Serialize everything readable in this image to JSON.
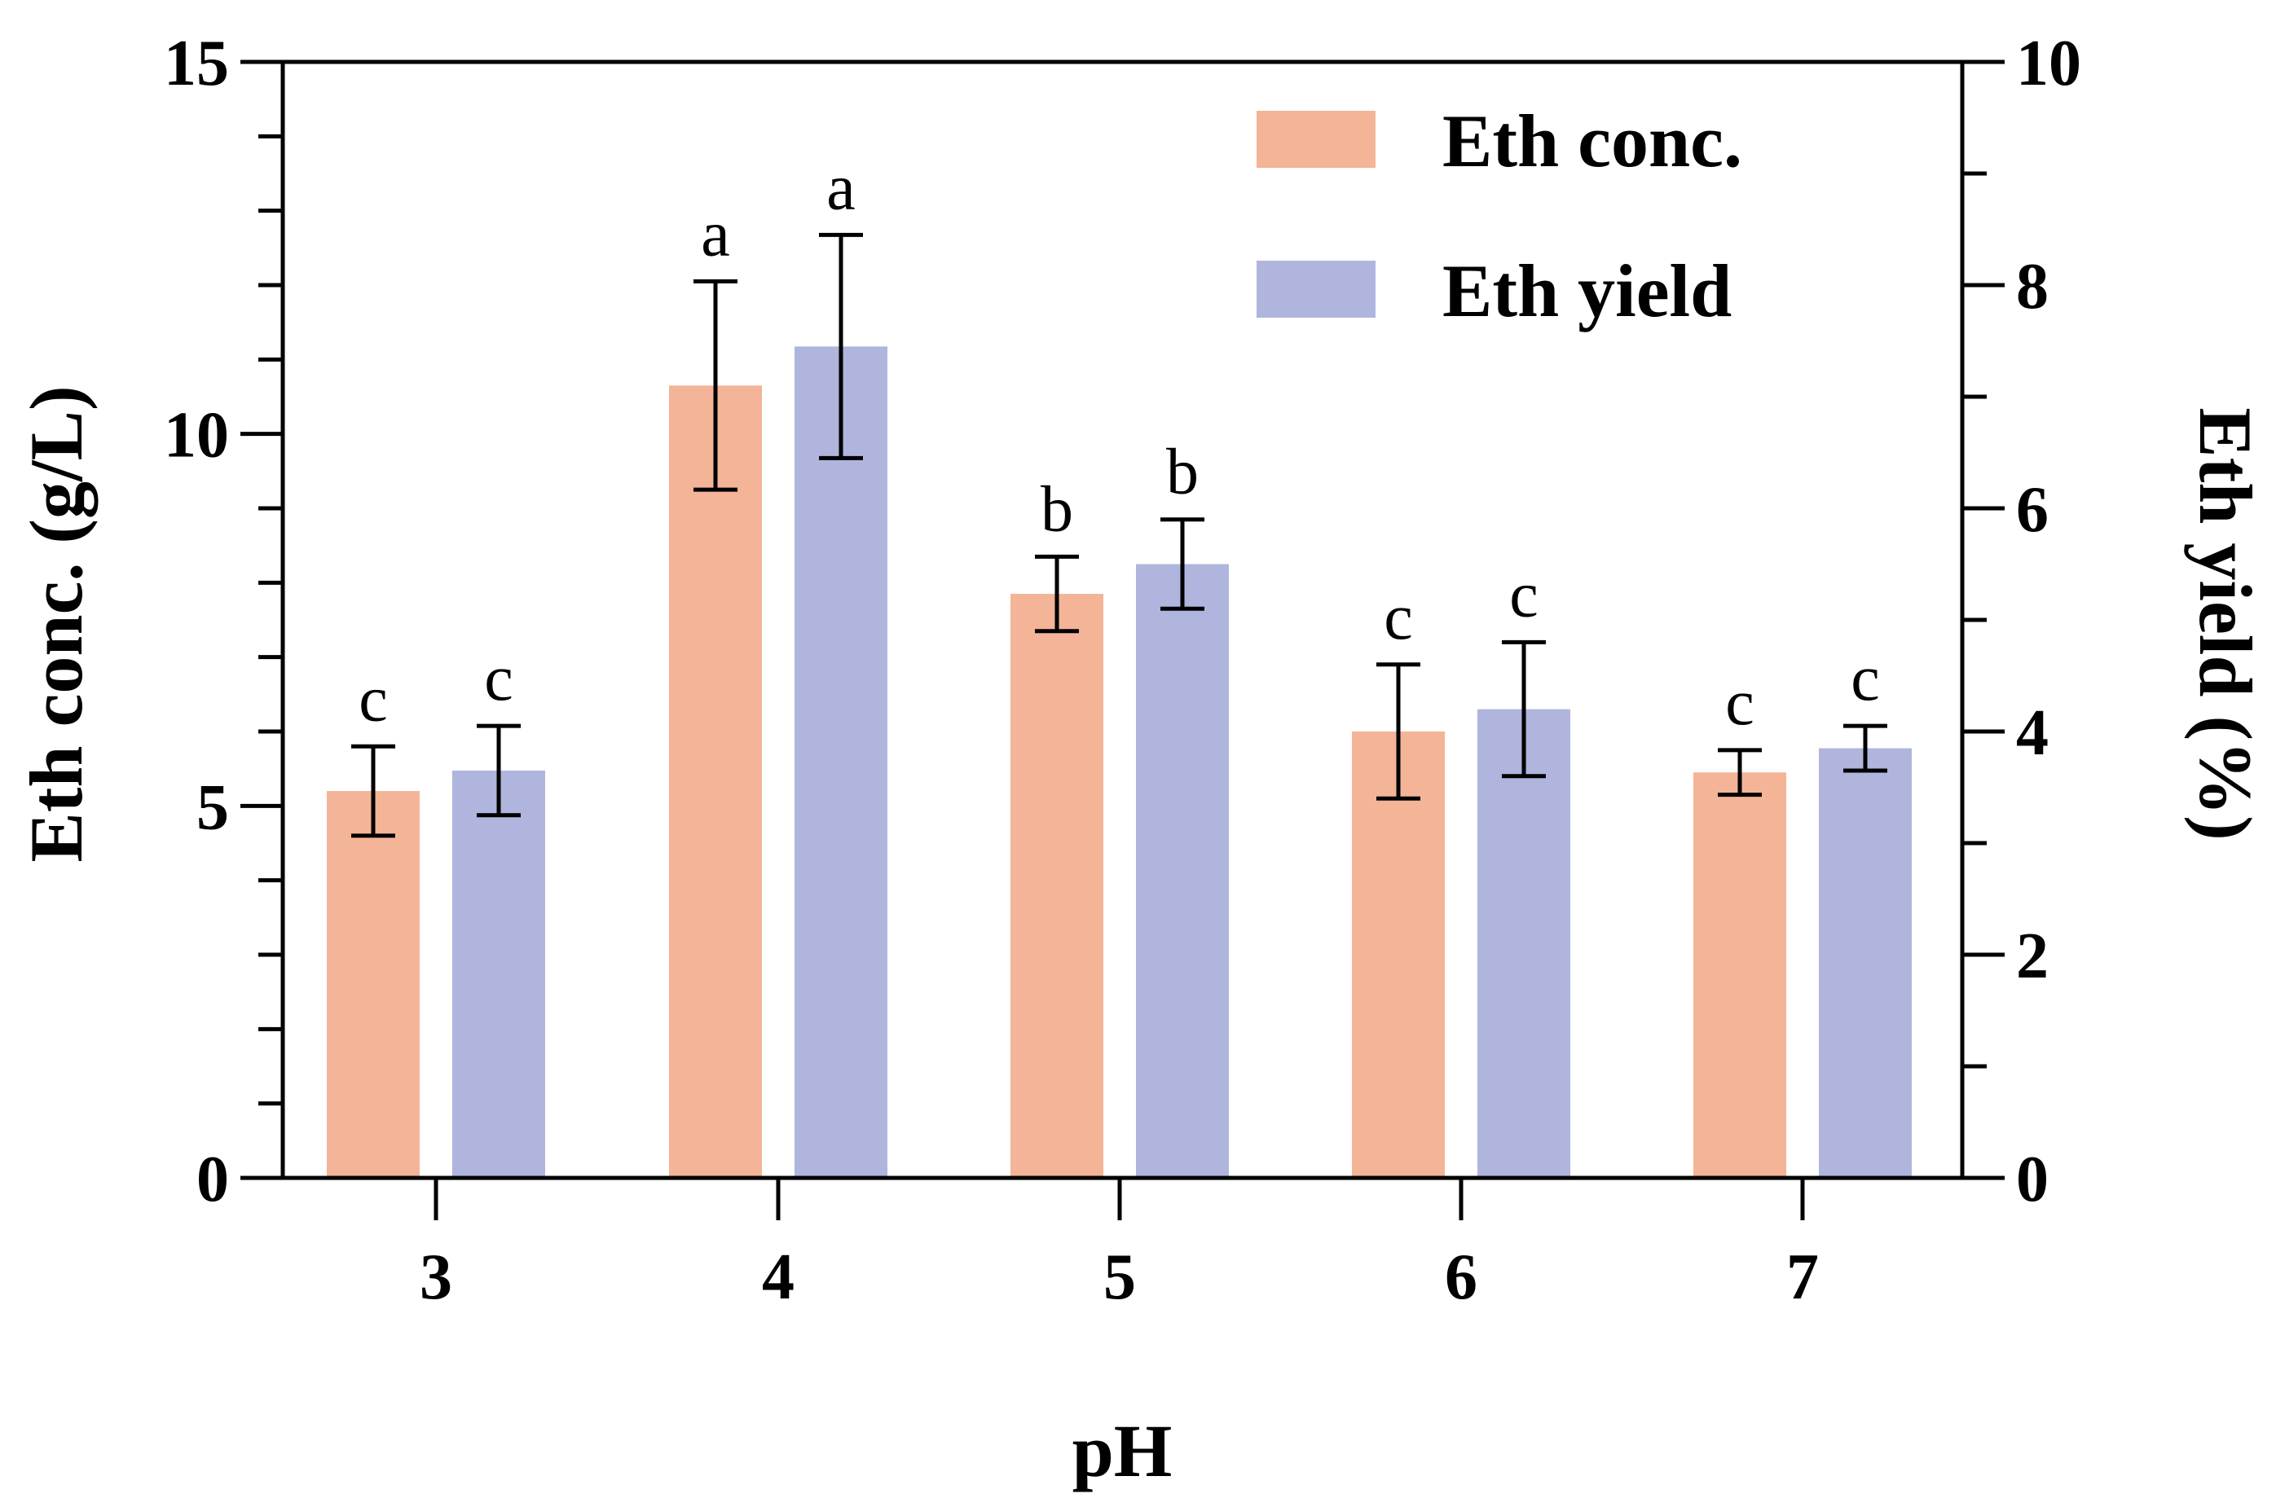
{
  "chart_data": {
    "type": "bar",
    "categories": [
      "3",
      "4",
      "5",
      "6",
      "7"
    ],
    "xlabel": "pH",
    "ylabel": "Eth conc. (g/L)",
    "y2label": "Eth yield (%)",
    "ylim": [
      0,
      15
    ],
    "y2lim": [
      0,
      10
    ],
    "yticks": [
      "0",
      "5",
      "10",
      "15"
    ],
    "y2ticks": [
      "0",
      "2",
      "4",
      "6",
      "8",
      "10"
    ],
    "legend_position": "top-right",
    "grid": false,
    "series": [
      {
        "name": "Eth conc.",
        "axis": "left",
        "color": "#F4B497",
        "values": [
          5.2,
          10.65,
          7.85,
          6.0,
          5.45
        ],
        "errors": [
          0.6,
          1.4,
          0.5,
          0.9,
          0.3
        ],
        "letters": [
          "c",
          "a",
          "b",
          "c",
          "c"
        ]
      },
      {
        "name": "Eth yield",
        "axis": "right",
        "color": "#AFB5DD",
        "values": [
          3.65,
          7.45,
          5.5,
          4.2,
          3.85
        ],
        "errors": [
          0.4,
          1.0,
          0.4,
          0.6,
          0.2
        ],
        "letters": [
          "c",
          "a",
          "b",
          "c",
          "c"
        ]
      }
    ]
  }
}
